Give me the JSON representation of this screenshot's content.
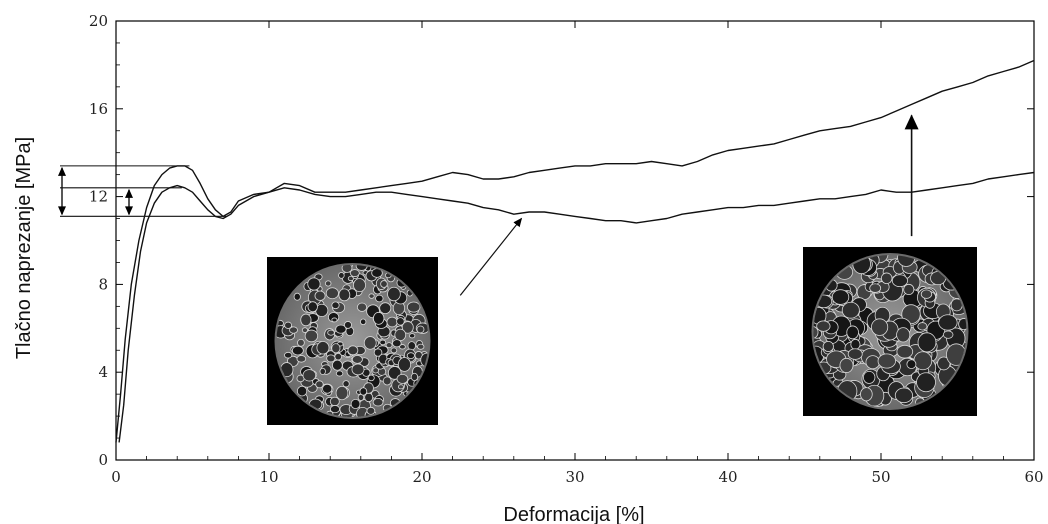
{
  "chart_data": {
    "type": "line",
    "xlabel": "Deformacija [%]",
    "ylabel": "Tlačno naprezanje [MPa]",
    "xlim": [
      0,
      60
    ],
    "ylim": [
      0,
      20
    ],
    "x_ticks": [
      "0",
      "10",
      "20",
      "30",
      "40",
      "50",
      "60"
    ],
    "y_ticks": [
      "0",
      "4",
      "8",
      "12",
      "16",
      "20"
    ],
    "grid": false,
    "legend": "none",
    "series": [
      {
        "x": [
          0,
          0.3,
          0.6,
          1,
          1.5,
          2,
          2.5,
          3,
          3.5,
          4,
          4.5,
          5,
          5.5,
          6,
          6.5,
          7,
          7.5,
          8,
          9,
          10,
          11,
          12,
          13,
          14,
          15,
          16,
          17,
          18,
          19,
          20,
          21,
          22,
          23,
          24,
          25,
          26,
          27,
          28,
          29,
          30,
          31,
          32,
          33,
          34,
          35,
          36,
          37,
          38,
          39,
          40,
          41,
          42,
          43,
          44,
          45,
          46,
          47,
          48,
          49,
          50,
          51,
          52,
          53,
          54,
          55,
          56,
          57,
          58,
          59,
          60
        ],
        "y": [
          0.8,
          3.0,
          5.5,
          8.0,
          10.0,
          11.5,
          12.5,
          13.0,
          13.3,
          13.4,
          13.4,
          13.2,
          12.6,
          11.9,
          11.4,
          11.1,
          11.3,
          11.8,
          12.1,
          12.2,
          12.6,
          12.5,
          12.2,
          12.2,
          12.2,
          12.3,
          12.4,
          12.5,
          12.6,
          12.7,
          12.9,
          13.1,
          13.0,
          12.8,
          12.8,
          12.9,
          13.1,
          13.2,
          13.3,
          13.4,
          13.4,
          13.5,
          13.5,
          13.5,
          13.6,
          13.5,
          13.4,
          13.6,
          13.9,
          14.1,
          14.2,
          14.3,
          14.4,
          14.6,
          14.8,
          15.0,
          15.1,
          15.2,
          15.4,
          15.6,
          15.9,
          16.2,
          16.5,
          16.8,
          17.0,
          17.2,
          17.5,
          17.7,
          17.9,
          18.2
        ]
      },
      {
        "x": [
          0.2,
          0.5,
          0.8,
          1.2,
          1.6,
          2,
          2.5,
          3,
          3.5,
          4,
          4.5,
          5,
          5.5,
          6,
          6.5,
          7,
          7.5,
          8,
          9,
          10,
          11,
          12,
          13,
          14,
          15,
          16,
          17,
          18,
          19,
          20,
          21,
          22,
          23,
          24,
          25,
          26,
          27,
          28,
          29,
          30,
          31,
          32,
          33,
          34,
          35,
          36,
          37,
          38,
          39,
          40,
          41,
          42,
          43,
          44,
          45,
          46,
          47,
          48,
          49,
          50,
          51,
          52,
          53,
          54,
          55,
          56,
          57,
          58,
          59,
          60
        ],
        "y": [
          0.8,
          2.5,
          5.0,
          7.5,
          9.5,
          10.8,
          11.7,
          12.2,
          12.4,
          12.5,
          12.4,
          12.2,
          11.8,
          11.4,
          11.1,
          11.0,
          11.2,
          11.6,
          12.0,
          12.2,
          12.4,
          12.3,
          12.1,
          12.0,
          12.0,
          12.1,
          12.2,
          12.2,
          12.1,
          12.0,
          11.9,
          11.8,
          11.7,
          11.5,
          11.4,
          11.2,
          11.3,
          11.3,
          11.2,
          11.1,
          11.0,
          10.9,
          10.9,
          10.8,
          10.9,
          11.0,
          11.2,
          11.3,
          11.4,
          11.5,
          11.5,
          11.6,
          11.6,
          11.7,
          11.8,
          11.9,
          11.9,
          12.0,
          12.1,
          12.3,
          12.2,
          12.2,
          12.3,
          12.4,
          12.5,
          12.6,
          12.8,
          12.9,
          13.0,
          13.1
        ]
      }
    ],
    "annotations": [
      {
        "type": "hline",
        "y": 13.4,
        "x_from": 0,
        "x_to": 4.8
      },
      {
        "type": "hline",
        "y": 12.4,
        "x_from": 0,
        "x_to": 4.3
      },
      {
        "type": "hline",
        "y": 11.1,
        "x_from": 0,
        "x_to": 7.2
      },
      {
        "type": "double-arrow",
        "x": -3.5,
        "y_from": 11.1,
        "y_to": 13.4
      },
      {
        "type": "double-arrow",
        "x": 0.9,
        "y_from": 11.1,
        "y_to": 12.4
      },
      {
        "type": "arrow",
        "x_from": 22.5,
        "y_from": 7.5,
        "x_to": 26.5,
        "y_to": 11.0
      },
      {
        "type": "arrow",
        "x_from": 52,
        "y_from": 10.2,
        "x_to": 52,
        "y_to": 15.7
      },
      {
        "type": "image",
        "description_name": "foam-micrograph-left"
      },
      {
        "type": "image",
        "description_name": "foam-micrograph-right"
      }
    ]
  }
}
